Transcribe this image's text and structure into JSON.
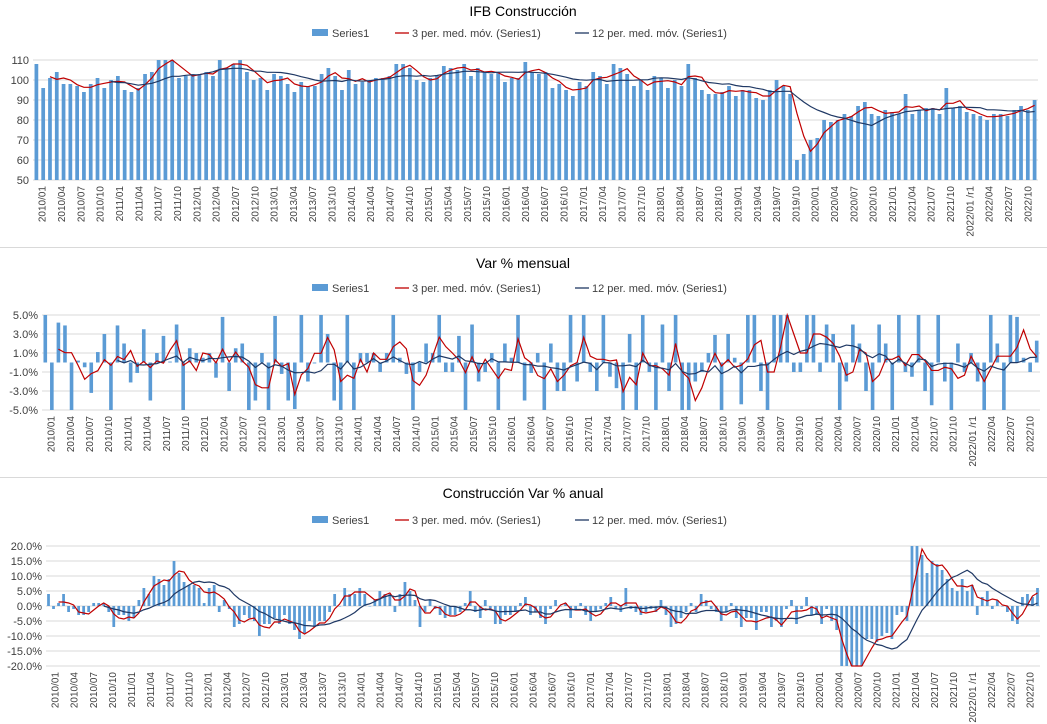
{
  "chart_data": [
    {
      "type": "bar+line",
      "title": "IFB Construcción",
      "legend": [
        "Series1",
        "3 per. med. móv. (Series1)",
        "12 per. med. móv. (Series1)"
      ],
      "legend_position": "top",
      "ylim": [
        50,
        110
      ],
      "yticks": [
        "50",
        "60",
        "70",
        "80",
        "90",
        "100",
        "110"
      ],
      "grid": true,
      "colors": {
        "bars": "#5b9bd5",
        "ma3": "#c00000",
        "ma12": "#1f3864"
      },
      "xtick_labels": [
        "2010/01",
        "2010/04",
        "2010/07",
        "2010/10",
        "2011/01",
        "2011/04",
        "2011/07",
        "2011/10",
        "2012/01",
        "2012/04",
        "2012/07",
        "2012/10",
        "2013/01",
        "2013/04",
        "2013/07",
        "2013/10",
        "2014/01",
        "2014/04",
        "2014/07",
        "2014/10",
        "2015/01",
        "2015/04",
        "2015/07",
        "2015/10",
        "2016/01",
        "2016/04",
        "2016/07",
        "2016/10",
        "2017/01",
        "2017/04",
        "2017/07",
        "2017/10",
        "2018/01",
        "2018/04",
        "2018/07",
        "2018/10",
        "2019/01",
        "2019/04",
        "2019/07",
        "2019/10",
        "2020/01",
        "2020/04",
        "2020/07",
        "2020/10",
        "2021/01",
        "2021/04",
        "2021/07",
        "2021/10",
        "2022/01 /r1",
        "2022/04",
        "2022/07",
        "2022/10"
      ],
      "values": [
        108,
        96,
        101,
        104,
        98,
        98,
        97,
        94,
        98,
        101,
        96,
        100,
        102,
        95,
        94,
        96,
        103,
        104,
        110,
        110,
        111,
        101,
        102,
        103,
        103,
        104,
        102,
        110,
        106,
        108,
        110,
        104,
        100,
        101,
        95,
        103,
        102,
        98,
        94,
        99,
        97,
        97,
        103,
        106,
        102,
        95,
        105,
        98,
        99,
        100,
        101,
        101,
        102,
        108,
        108,
        106,
        100,
        99,
        101,
        102,
        107,
        106,
        105,
        108,
        102,
        106,
        104,
        103,
        104,
        99,
        101,
        101,
        109,
        104,
        103,
        104,
        96,
        98,
        95,
        92,
        99,
        97,
        104,
        102,
        98,
        108,
        106,
        103,
        97,
        100,
        95,
        102,
        101,
        96,
        100,
        97,
        108,
        101,
        95,
        93,
        93,
        94,
        97,
        92,
        95,
        95,
        91,
        90,
        95,
        100,
        97,
        93,
        60,
        63,
        70,
        71,
        80,
        79,
        80,
        83,
        82,
        87,
        89,
        83,
        82,
        85,
        84,
        83,
        93,
        83,
        85,
        86,
        86,
        83,
        96,
        86,
        87,
        84,
        83,
        82,
        80,
        83,
        83,
        82,
        85,
        87,
        85,
        90
      ]
    },
    {
      "type": "bar+line",
      "title": "Var % mensual",
      "legend": [
        "Series1",
        "3 per. med. móv. (Series1)",
        "12 per. med. móv. (Series1)"
      ],
      "legend_position": "top",
      "ylim": [
        -5,
        5
      ],
      "yticks": [
        "-5.0%",
        "-3.0%",
        "-1.0%",
        "1.0%",
        "3.0%",
        "5.0%"
      ],
      "grid": true,
      "colors": {
        "bars": "#5b9bd5",
        "ma3": "#c00000",
        "ma12": "#1f3864"
      },
      "xtick_labels": [
        "2010/01",
        "2010/04",
        "2010/07",
        "2010/10",
        "2011/01",
        "2011/04",
        "2011/07",
        "2011/10",
        "2012/01",
        "2012/04",
        "2012/07",
        "2012/10",
        "2013/01",
        "2013/04",
        "2013/07",
        "2013/10",
        "2014/01",
        "2014/04",
        "2014/07",
        "2014/10",
        "2015/01",
        "2015/04",
        "2015/07",
        "2015/10",
        "2016/01",
        "2016/04",
        "2016/07",
        "2016/10",
        "2017/01",
        "2017/04",
        "2017/07",
        "2017/10",
        "2018/01",
        "2018/04",
        "2018/07",
        "2018/10",
        "2019/01",
        "2019/04",
        "2019/07",
        "2019/10",
        "2020/01",
        "2020/04",
        "2020/07",
        "2020/10",
        "2021/01",
        "2021/04",
        "2021/07",
        "2021/10",
        "2022/01 /r1",
        "2022/04",
        "2022/07",
        "2022/10"
      ],
      "values": [
        5.0,
        -5.0,
        4.2,
        3.9,
        -5.0,
        0.2,
        -0.5,
        -3.2,
        1.1,
        3.0,
        -5.0,
        3.9,
        2.0,
        -2.1,
        -1.1,
        3.5,
        -4.0,
        1.0,
        2.8,
        0.1,
        4.0,
        -5.0,
        1.5,
        1.0,
        0.5,
        1.0,
        -1.6,
        4.8,
        -3.0,
        1.5,
        2.0,
        -5.0,
        -4.0,
        1.0,
        -5.0,
        4.9,
        -1.2,
        -4.0,
        -4.9,
        5.0,
        -2.0,
        -0.1,
        5.0,
        3.0,
        -4.0,
        -5.0,
        5.0,
        -5.0,
        1.0,
        1.0,
        1.0,
        -1.0,
        1.0,
        5.0,
        0.5,
        -1.2,
        -5.0,
        -1.0,
        2.0,
        1.0,
        5.0,
        -1.0,
        -1.0,
        2.8,
        -5.0,
        4.0,
        -2.0,
        -1.0,
        1.0,
        -5.0,
        2.0,
        0.5,
        5.0,
        -4.0,
        -1.1,
        1.0,
        -5.0,
        2.0,
        -3.0,
        -3.0,
        5.0,
        -2.0,
        5.0,
        -1.0,
        -3.0,
        5.0,
        -1.5,
        -2.7,
        -5.0,
        3.0,
        -5.0,
        5.0,
        -1.0,
        -5.0,
        4.0,
        -3.0,
        5.0,
        -5.0,
        -5.0,
        -2.0,
        -1.0,
        1.0,
        2.9,
        -5.0,
        3.0,
        0.5,
        -4.4,
        5.0,
        5.0,
        -3.0,
        -5.0,
        5.0,
        5.0,
        5.0,
        -1.0,
        -1.0,
        5.0,
        5.0,
        -1.0,
        4.0,
        3.0,
        -5.0,
        -2.0,
        4.0,
        2.0,
        -3.0,
        -5.0,
        4.0,
        2.0,
        -5.0,
        5.0,
        -1.0,
        -1.5,
        5.0,
        -3.0,
        -4.5,
        5.0,
        -2.0,
        -5.0,
        2.0,
        -1.0,
        1.0,
        -2.0,
        -5.0,
        5.0,
        2.0,
        -5.0,
        5.0,
        4.8,
        0.5,
        -1.0,
        2.3
      ]
    },
    {
      "type": "bar+line",
      "title": "Construcción Var % anual",
      "legend": [
        "Series1",
        "3 per. med. móv. (Series1)",
        "12 per. med. móv. (Series1)"
      ],
      "legend_position": "top",
      "ylim": [
        -20,
        20
      ],
      "yticks": [
        "-20.0%",
        "-15.0%",
        "-10.0%",
        "-5.0%",
        "0.0%",
        "5.0%",
        "10.0%",
        "15.0%",
        "20.0%"
      ],
      "grid": true,
      "colors": {
        "bars": "#5b9bd5",
        "ma3": "#c00000",
        "ma12": "#1f3864"
      },
      "xtick_labels": [
        "2010/01",
        "2010/04",
        "2010/07",
        "2010/10",
        "2011/01",
        "2011/04",
        "2011/07",
        "2011/10",
        "2012/01",
        "2012/04",
        "2012/07",
        "2012/10",
        "2013/01",
        "2013/04",
        "2013/07",
        "2013/10",
        "2014/01",
        "2014/04",
        "2014/07",
        "2014/10",
        "2015/01",
        "2015/04",
        "2015/07",
        "2015/10",
        "2016/01",
        "2016/04",
        "2016/07",
        "2016/10",
        "2017/01",
        "2017/04",
        "2017/07",
        "2017/10",
        "2018/01",
        "2018/04",
        "2018/07",
        "2018/10",
        "2019/01",
        "2019/04",
        "2019/07",
        "2019/10",
        "2020/01",
        "2020/04",
        "2020/07",
        "2020/10",
        "2021/01",
        "2021/04",
        "2021/07",
        "2021/10",
        "2022/01 /r1",
        "2022/04",
        "2022/07",
        "2022/10"
      ],
      "values": [
        4,
        -1,
        1,
        4,
        -2,
        -1,
        -3,
        -3,
        -2,
        1,
        1,
        1,
        -2,
        -7,
        -3,
        -3,
        -5,
        -4,
        2,
        6,
        4,
        10,
        9,
        7,
        9,
        15,
        11,
        8,
        7,
        7,
        6,
        1,
        6,
        7,
        -2,
        2,
        -1,
        -7,
        -6,
        -3,
        -4,
        -5,
        -10,
        -6,
        -6,
        -4,
        -6,
        -3,
        -6,
        -8,
        -11,
        -9,
        -5,
        -7,
        -5,
        -5,
        -2,
        4,
        0,
        6,
        4,
        4,
        6,
        4,
        0,
        2,
        5,
        4,
        4,
        -2,
        4,
        8,
        5,
        2,
        -7,
        -2,
        2,
        -1,
        -3,
        -4,
        -3,
        -3,
        -2,
        1,
        5,
        -2,
        -4,
        2,
        -1,
        -6,
        -6,
        -3,
        -3,
        -2,
        1,
        3,
        -3,
        -2,
        -4,
        -6,
        -1,
        2,
        0,
        1,
        -4,
        -1,
        1,
        -3,
        -5,
        -2,
        -1,
        1,
        3,
        -1,
        -2,
        6,
        -1,
        -2,
        -3,
        -2,
        -1,
        -2,
        2,
        -3,
        -7,
        -6,
        -4,
        -2,
        1,
        -2,
        4,
        2,
        -1,
        -2,
        -5,
        -2,
        1,
        -4,
        -7,
        -4,
        -4,
        -8,
        -2,
        -2,
        -7,
        -5,
        -7,
        -1,
        2,
        -6,
        -1,
        3,
        -3,
        -3,
        -6,
        -1,
        -5,
        -8,
        -20,
        -20,
        -20,
        -20,
        -20,
        -11,
        -11,
        -12,
        -10,
        -9,
        -11,
        -3,
        -2,
        -5,
        20,
        20,
        17,
        11,
        15,
        14,
        12,
        9,
        6,
        5,
        9,
        5,
        7,
        -3,
        3,
        5,
        -1,
        2,
        0,
        -2,
        -5,
        -6,
        3,
        4,
        3,
        6
      ]
    }
  ]
}
